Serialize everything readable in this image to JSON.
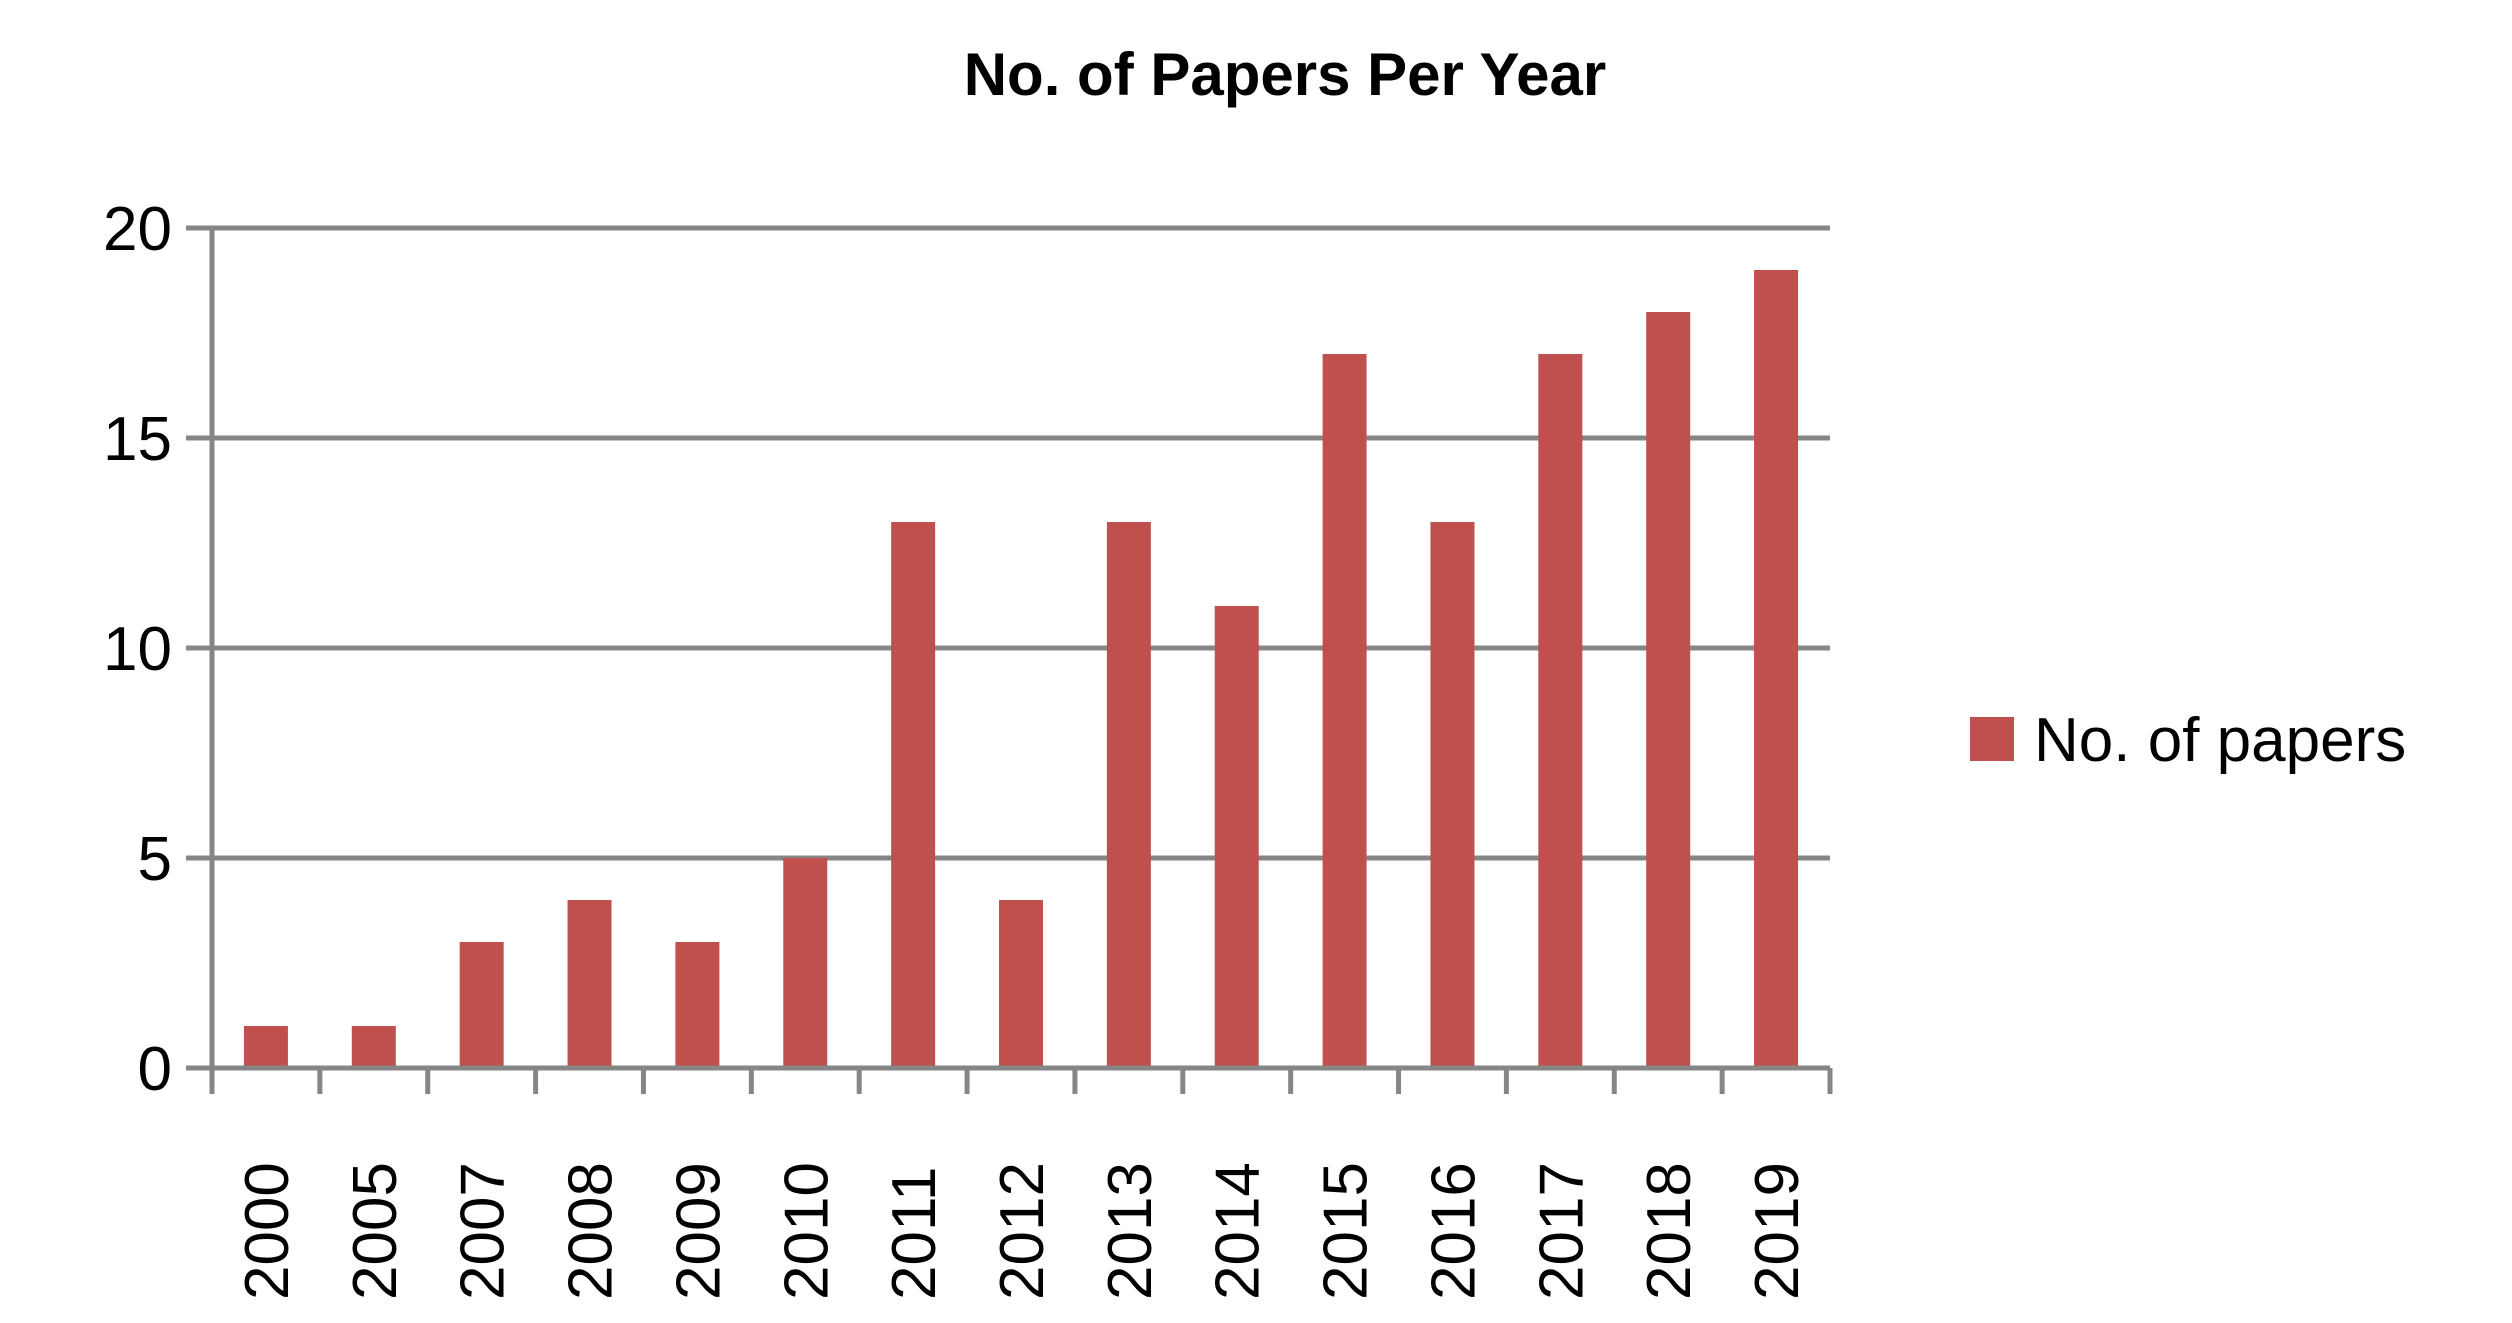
{
  "chart_data": {
    "type": "bar",
    "title": "No. of Papers Per Year",
    "categories": [
      "2000",
      "2005",
      "2007",
      "2008",
      "2009",
      "2010",
      "2011",
      "2012",
      "2013",
      "2014",
      "2015",
      "2016",
      "2017",
      "2018",
      "2019"
    ],
    "series": [
      {
        "name": "No. of papers",
        "values": [
          1,
          1,
          3,
          4,
          3,
          5,
          13,
          4,
          13,
          11,
          17,
          13,
          17,
          18,
          19
        ],
        "color": "#c0504d"
      }
    ],
    "xlabel": "",
    "ylabel": "",
    "ylim": [
      0,
      20
    ],
    "yticks": [
      0,
      5,
      10,
      15,
      20
    ],
    "grid": true,
    "legend_position": "right",
    "gridline_color": "#868686"
  }
}
